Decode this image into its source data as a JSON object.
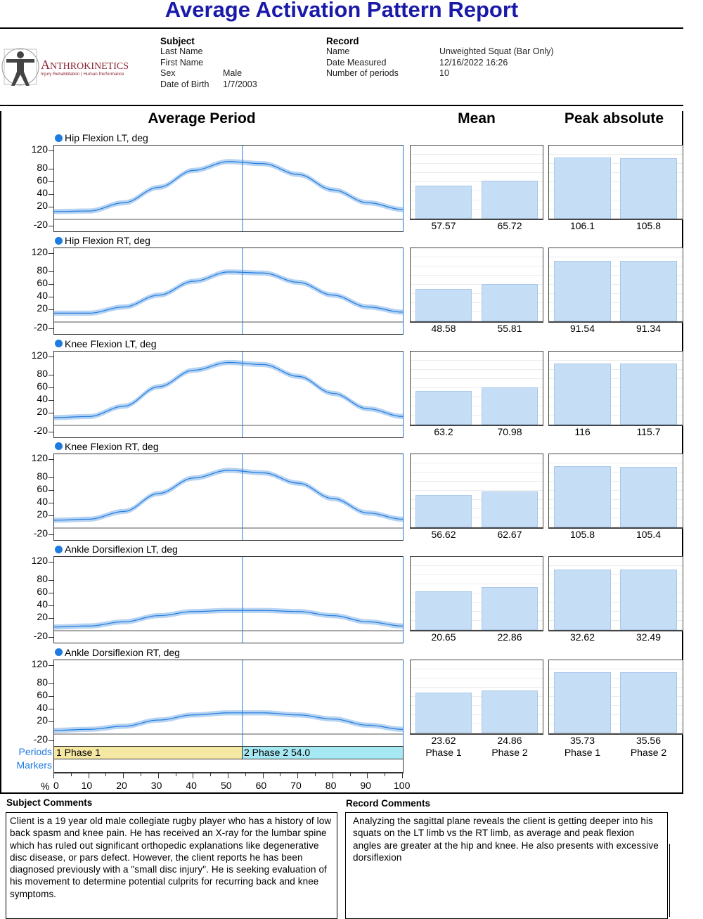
{
  "title": "Average Activation Pattern Report",
  "logo": {
    "name": "ANTHROKINETICS",
    "tagline": "Injury Rehabilitation | Human Performance"
  },
  "subject": {
    "heading": "Subject",
    "fields": [
      {
        "label": "Last Name",
        "value": ""
      },
      {
        "label": "First Name",
        "value": ""
      },
      {
        "label": "Sex",
        "value": "Male"
      },
      {
        "label": "Date of Birth",
        "value": "1/7/2003"
      }
    ]
  },
  "record": {
    "heading": "Record",
    "fields": [
      {
        "label": "Name",
        "value": "Unweighted Squat (Bar Only)"
      },
      {
        "label": "Date Measured",
        "value": "12/16/2022 16:26"
      },
      {
        "label": "Number of periods",
        "value": "10"
      }
    ]
  },
  "columns": {
    "average": "Average Period",
    "mean": "Mean",
    "peak": "Peak absolute"
  },
  "y_ticks": [
    "120",
    "80",
    "60",
    "40",
    "20",
    "-20"
  ],
  "colors": {
    "line": "#1e7be0",
    "band": "#b7d3f2",
    "bar": "#c5ddf5",
    "phase1": "#f5e8a3",
    "phase2": "#a7e9f3",
    "title": "#1a1aa8"
  },
  "chart_data": {
    "type": "line",
    "x": [
      0,
      10,
      20,
      30,
      40,
      50,
      60,
      70,
      80,
      90,
      100
    ],
    "xlabel": "%",
    "ylim": [
      -25,
      130
    ],
    "phase_split": 54.0,
    "series": [
      {
        "name": "Hip Flexion LT, deg",
        "values": [
          8,
          9,
          25,
          55,
          88,
          105,
          101,
          80,
          50,
          25,
          12
        ],
        "mean": [
          "57.57",
          "65.72"
        ],
        "peak": [
          "106.1",
          "105.8"
        ]
      },
      {
        "name": "Hip Flexion RT, deg",
        "values": [
          10,
          10,
          22,
          45,
          72,
          90,
          88,
          70,
          45,
          22,
          12
        ],
        "mean": [
          "48.58",
          "55.81"
        ],
        "peak": [
          "91.54",
          "91.34"
        ]
      },
      {
        "name": "Knee Flexion LT, deg",
        "values": [
          8,
          10,
          30,
          68,
          100,
          115,
          111,
          88,
          55,
          25,
          10
        ],
        "mean": [
          "63.2",
          "70.98"
        ],
        "peak": [
          "116",
          "115.7"
        ]
      },
      {
        "name": "Knee Flexion RT, deg",
        "values": [
          8,
          10,
          25,
          60,
          90,
          105,
          100,
          80,
          50,
          22,
          10
        ],
        "mean": [
          "56.62",
          "62.67"
        ],
        "peak": [
          "105.8",
          "105.4"
        ]
      },
      {
        "name": "Ankle Dorsiflexion LT, deg",
        "values": [
          0,
          2,
          10,
          22,
          30,
          32,
          32,
          30,
          22,
          10,
          2
        ],
        "mean": [
          "20.65",
          "22.86"
        ],
        "peak": [
          "32.62",
          "32.49"
        ]
      },
      {
        "name": "Ankle Dorsiflexion RT, deg",
        "values": [
          0,
          2,
          8,
          20,
          30,
          34,
          34,
          30,
          22,
          10,
          2
        ],
        "mean": [
          "23.62",
          "24.86"
        ],
        "peak": [
          "35.73",
          "35.56"
        ]
      }
    ]
  },
  "phases": [
    "Phase 1",
    "Phase 2"
  ],
  "periods": {
    "label": "Periods",
    "phase1": "1 Phase 1",
    "phase2": "2 Phase 2 54.0"
  },
  "markers": {
    "label": "Markers"
  },
  "x_axis": {
    "unit": "%",
    "ticks": [
      "0",
      "10",
      "20",
      "30",
      "40",
      "50",
      "60",
      "70",
      "80",
      "90",
      "100"
    ]
  },
  "comments": {
    "subject_heading": "Subject Comments",
    "subject_text": "Client is a 19 year old male collegiate rugby player who has a history of low back spasm and knee pain. He has received an X-ray for the lumbar spine which has ruled out significant orthopedic explanations like degenerative disc disease, or pars defect. However, the client reports he has been diagnosed previously with a \"small disc injury\". He is seeking evaluation of his movement to determine potential culprits for recurring back and knee symptoms.",
    "record_heading": "Record Comments",
    "record_text": "Analyzing the sagittal plane reveals the client is getting deeper into his squats on the LT limb vs the RT limb, as average and peak flexion angles are greater at the hip and knee. He also presents with excessive dorsiflexion"
  }
}
